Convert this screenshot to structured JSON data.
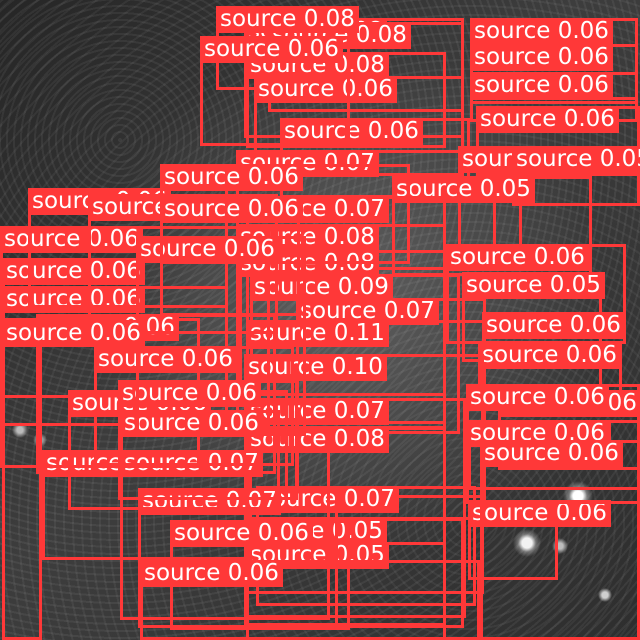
{
  "image": {
    "kind": "grayscale microscopy frame with object-detection overlay",
    "box_color": "#ff3838",
    "label_text_color": "#ffffff"
  },
  "detections": [
    {
      "label": "source 0.08"
    },
    {
      "label": "source 0.08"
    },
    {
      "label": "source 0.08"
    },
    {
      "label": "source 0.06"
    },
    {
      "label": "source 0.06"
    },
    {
      "label": "source 0.06"
    },
    {
      "label": "source 0.08"
    },
    {
      "label": "source 0.06"
    },
    {
      "label": "source 0.06"
    },
    {
      "label": "source 0.06"
    },
    {
      "label": "source 0.07"
    },
    {
      "label": "source 0.05"
    },
    {
      "label": "source 0.05"
    },
    {
      "label": "source 0.05"
    },
    {
      "label": "source 0.07"
    },
    {
      "label": "source 0.08"
    },
    {
      "label": "source 0.08"
    },
    {
      "label": "source 0.06"
    },
    {
      "label": "source 0.05"
    },
    {
      "label": "source 0.09"
    },
    {
      "label": "source 0.07"
    },
    {
      "label": "source 0.11"
    },
    {
      "label": "source 0.06"
    },
    {
      "label": "source 0.06"
    },
    {
      "label": "source 0.10"
    },
    {
      "label": "source 0.07"
    },
    {
      "label": "source 0.08"
    },
    {
      "label": "source 0.06"
    },
    {
      "label": "source 0.08"
    },
    {
      "label": "source 0.07"
    },
    {
      "label": "source 0.05"
    },
    {
      "label": "source 0.05"
    },
    {
      "label": "source 0.06"
    },
    {
      "label": "source 0.07"
    },
    {
      "label": "source 0.07"
    },
    {
      "label": "source 0.06"
    },
    {
      "label": "source 0.06"
    },
    {
      "label": "source 0.06"
    },
    {
      "label": "source 0.06"
    },
    {
      "label": "source 0.06"
    },
    {
      "label": "source 0.06"
    },
    {
      "label": "source 0.06"
    },
    {
      "label": "source 0.06"
    },
    {
      "label": "source 0.06"
    },
    {
      "label": "source 0.06"
    },
    {
      "label": "source 0.06"
    },
    {
      "label": "source 0.06"
    },
    {
      "label": "source 0.06"
    },
    {
      "label": "source 0.06"
    },
    {
      "label": "source 0.06"
    },
    {
      "label": "source 0.06"
    },
    {
      "label": "source 0.06"
    },
    {
      "label": "source 0.06"
    },
    {
      "label": "source 0.06"
    },
    {
      "label": "source 0.06"
    },
    {
      "label": "source 0.06"
    },
    {
      "label": "source 0.06"
    }
  ]
}
